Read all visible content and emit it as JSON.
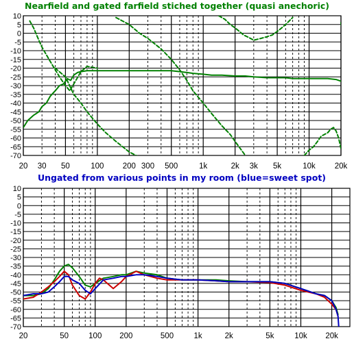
{
  "chart_data": [
    {
      "type": "line",
      "title": "Nearfield and gated farfield stiched together (quasi anechoric)",
      "title_color": "#008000",
      "x_scale": "log",
      "xlim": [
        20,
        20000
      ],
      "ylim": [
        -70,
        10
      ],
      "y_ticks": [
        10,
        5,
        0,
        -5,
        -10,
        -15,
        -20,
        -25,
        -30,
        -35,
        -40,
        -45,
        -50,
        -55,
        -60,
        -65,
        -70
      ],
      "x_ticks": [
        {
          "value": 20,
          "label": "20"
        },
        {
          "value": 30,
          "label": "30"
        },
        {
          "value": 50,
          "label": "50"
        },
        {
          "value": 100,
          "label": "100"
        },
        {
          "value": 200,
          "label": "200"
        },
        {
          "value": 300,
          "label": "300"
        },
        {
          "value": 500,
          "label": "500"
        },
        {
          "value": 1000,
          "label": "1k"
        },
        {
          "value": 2000,
          "label": "2k"
        },
        {
          "value": 3000,
          "label": "3k"
        },
        {
          "value": 5000,
          "label": "5k"
        },
        {
          "value": 10000,
          "label": "10k"
        },
        {
          "value": 20000,
          "label": "20k"
        }
      ],
      "grid": true,
      "series": [
        {
          "color": "#008000",
          "style": "solid",
          "x": [
            20,
            22,
            25,
            28,
            30,
            33,
            36,
            40,
            44,
            48,
            52,
            56,
            60,
            65,
            70,
            80,
            100,
            150,
            200,
            300,
            400,
            500,
            600,
            700,
            800,
            1000,
            1200,
            1500,
            2000,
            2500,
            3000,
            4000,
            5000,
            6000,
            7000,
            8000,
            10000,
            12000,
            15000,
            18000,
            20000
          ],
          "y": [
            -54,
            -50,
            -47,
            -45,
            -42,
            -40,
            -36,
            -33,
            -30,
            -29,
            -26,
            -27,
            -24,
            -22.5,
            -22,
            -21.5,
            -21.5,
            -21.5,
            -21.5,
            -21.5,
            -21.5,
            -21.5,
            -22,
            -22.5,
            -23,
            -23.5,
            -24,
            -24,
            -24.5,
            -24.5,
            -25,
            -25.5,
            -25.5,
            -25.5,
            -26,
            -26,
            -26,
            -26,
            -26,
            -26.5,
            -27.5
          ]
        },
        {
          "color": "#008000",
          "style": "dashed",
          "x": [
            23,
            25,
            28,
            30,
            35,
            40,
            45,
            50,
            55,
            60,
            70,
            80,
            100
          ],
          "y": [
            7,
            3,
            -4,
            -8,
            -15,
            -21,
            -26,
            -30,
            -33,
            -29,
            -22,
            -19,
            -20
          ]
        },
        {
          "color": "#008000",
          "style": "dashed",
          "x": [
            40,
            50,
            60,
            70,
            80,
            100,
            120,
            150,
            200,
            250
          ],
          "y": [
            -20,
            -25,
            -35,
            -40,
            -45,
            -52,
            -57,
            -62,
            -68,
            -71
          ]
        },
        {
          "color": "#008000",
          "style": "dashed",
          "x": [
            150,
            200,
            250,
            300,
            400,
            500,
            600,
            700,
            800,
            1000,
            1200,
            1500,
            1800,
            2000,
            2500
          ],
          "y": [
            9,
            5,
            0,
            -3,
            -9,
            -15,
            -21,
            -27,
            -33,
            -40,
            -46,
            -53,
            -58,
            -62,
            -70
          ]
        },
        {
          "color": "#008000",
          "style": "dashed",
          "x": [
            1400,
            1600,
            1800,
            2000,
            2200,
            2400,
            2600,
            2800,
            3000,
            3500,
            4000,
            4500,
            5000,
            5500,
            6000,
            7000
          ],
          "y": [
            10,
            8,
            5,
            3,
            1,
            -1,
            -2,
            -3,
            -4,
            -3,
            -2,
            -1,
            1,
            3,
            5,
            9
          ]
        },
        {
          "color": "#008000",
          "style": "dashed",
          "x": [
            9000,
            10000,
            11000,
            12000,
            13000,
            15000,
            16000,
            17000,
            18000,
            19000,
            20000
          ],
          "y": [
            -70,
            -67,
            -65,
            -62,
            -59,
            -57,
            -55,
            -54,
            -56,
            -60,
            -66
          ]
        },
        {
          "color": "#008000",
          "style": "dashed",
          "x": [
            20000,
            20500,
            21000,
            21500
          ],
          "y": [
            6,
            2,
            -3,
            -10
          ]
        }
      ]
    },
    {
      "type": "line",
      "title": "Ungated from various points in my room (blue=sweet spot)",
      "title_color": "#0000c0",
      "x_scale": "log",
      "xlim": [
        20,
        30000
      ],
      "ylim": [
        -70,
        10
      ],
      "y_ticks": [
        10,
        5,
        0,
        -5,
        -10,
        -15,
        -20,
        -25,
        -30,
        -35,
        -40,
        -45,
        -50,
        -55,
        -60,
        -65,
        -70
      ],
      "x_ticks": [
        {
          "value": 20,
          "label": "20"
        },
        {
          "value": 50,
          "label": "50"
        },
        {
          "value": 100,
          "label": "100"
        },
        {
          "value": 200,
          "label": "200"
        },
        {
          "value": 500,
          "label": "500"
        },
        {
          "value": 1000,
          "label": "1k"
        },
        {
          "value": 2000,
          "label": "2k"
        },
        {
          "value": 5000,
          "label": "5k"
        },
        {
          "value": 10000,
          "label": "10k"
        },
        {
          "value": 20000,
          "label": "20k"
        }
      ],
      "grid": true,
      "series": [
        {
          "color": "#008000",
          "style": "solid",
          "x": [
            20,
            25,
            30,
            35,
            40,
            45,
            50,
            55,
            60,
            70,
            80,
            90,
            100,
            120,
            150,
            180,
            200,
            250,
            300,
            400,
            500,
            700,
            1000,
            1500,
            2000,
            3000,
            5000,
            7000,
            10000,
            14000,
            17000,
            20000,
            22000,
            23000
          ],
          "y": [
            -52,
            -52,
            -51,
            -48,
            -43,
            -38,
            -35,
            -34,
            -36,
            -41,
            -46,
            -47,
            -45,
            -42,
            -41,
            -40,
            -40,
            -38,
            -39,
            -40,
            -42,
            -43,
            -43,
            -43,
            -43.5,
            -44,
            -44,
            -45,
            -48,
            -51,
            -52,
            -55,
            -59,
            -63
          ]
        },
        {
          "color": "#cc0000",
          "style": "solid",
          "x": [
            20,
            25,
            30,
            35,
            40,
            45,
            50,
            55,
            60,
            70,
            80,
            90,
            100,
            110,
            120,
            150,
            180,
            200,
            250,
            300,
            400,
            500,
            700,
            1000,
            1500,
            2000,
            3000,
            5000,
            7000,
            10000,
            14000,
            17000,
            20000,
            22000,
            23000
          ],
          "y": [
            -54,
            -53,
            -50,
            -47,
            -44,
            -41,
            -38,
            -40,
            -46,
            -52,
            -54,
            -50,
            -45,
            -42,
            -43,
            -48,
            -44,
            -41,
            -38,
            -40,
            -42,
            -43,
            -43,
            -43,
            -43.5,
            -44,
            -44,
            -44.5,
            -46,
            -49,
            -51,
            -53,
            -57,
            -60,
            -64
          ]
        },
        {
          "color": "#0000c0",
          "style": "solid",
          "x": [
            20,
            25,
            30,
            35,
            40,
            45,
            50,
            55,
            60,
            70,
            80,
            90,
            100,
            120,
            150,
            180,
            200,
            250,
            300,
            400,
            500,
            700,
            1000,
            1500,
            2000,
            3000,
            5000,
            7000,
            10000,
            14000,
            17000,
            20000,
            22000,
            23000,
            23500
          ],
          "y": [
            -52,
            -51,
            -51,
            -50,
            -47,
            -44,
            -41,
            -41,
            -43,
            -45,
            -49,
            -51,
            -48,
            -43,
            -42,
            -41,
            -41,
            -40,
            -40,
            -41,
            -42,
            -43,
            -43,
            -43.5,
            -44,
            -44,
            -44,
            -45,
            -48,
            -51,
            -52,
            -55,
            -60,
            -64,
            -72
          ]
        }
      ]
    }
  ]
}
